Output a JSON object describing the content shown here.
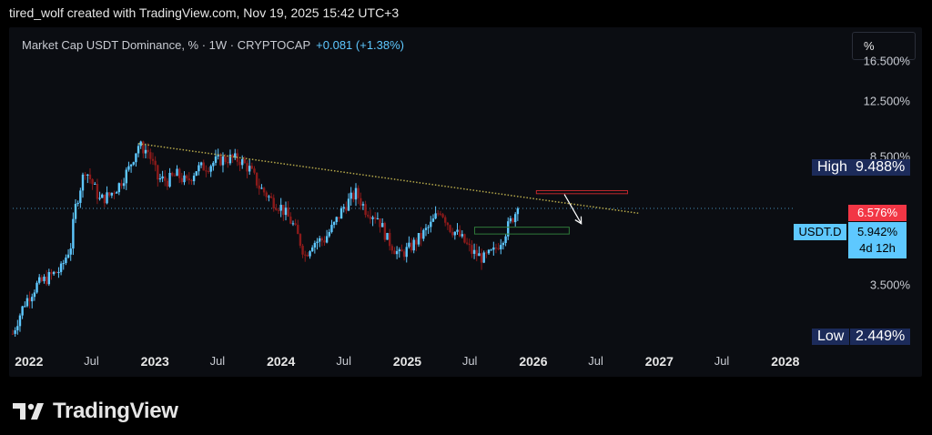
{
  "header": {
    "caption": "tired_wolf created with TradingView.com, Nov 19, 2025 15:42 UTC+3"
  },
  "legend": {
    "symbol_text": "Market Cap USDT Dominance, % · 1W · CRYPTOCAP",
    "change_text": "+0.081 (+1.38%)"
  },
  "controls": {
    "unit_button_label": "%"
  },
  "tags": {
    "high_label": "High",
    "high_value": "9.488%",
    "low_label": "Low",
    "low_value": "2.449%",
    "red_price": "6.576%",
    "symbol_label": "USDT.D",
    "last_price": "5.942%",
    "countdown": "4d 12h"
  },
  "footer": {
    "brand": "TradingView"
  },
  "colors": {
    "up": "#5ec8ff",
    "down": "#8b1a1a",
    "trendline": "#b5a84a",
    "red_zone": "#c0282d",
    "green_zone": "#2f7a3a",
    "arrow": "#ffffff"
  },
  "chart_data": {
    "type": "candlestick",
    "symbol": "USDT.D",
    "interval": "1W",
    "y_scale": "log",
    "ylim": [
      2.3,
      20
    ],
    "xlim": [
      "2021-11-15",
      "2028-05-15"
    ],
    "y_ticks": [
      {
        "label": "16.500%",
        "value": 16.5
      },
      {
        "label": "12.500%",
        "value": 12.5
      },
      {
        "label": "8.500%",
        "value": 8.5
      },
      {
        "label": "3.500%",
        "value": 3.5
      }
    ],
    "x_ticks": [
      {
        "label": "2022",
        "date": "2022-01-01",
        "year": true
      },
      {
        "label": "Jul",
        "date": "2022-07-01",
        "year": false
      },
      {
        "label": "2023",
        "date": "2023-01-01",
        "year": true
      },
      {
        "label": "Jul",
        "date": "2023-07-01",
        "year": false
      },
      {
        "label": "2024",
        "date": "2024-01-01",
        "year": true
      },
      {
        "label": "Jul",
        "date": "2024-07-01",
        "year": false
      },
      {
        "label": "2025",
        "date": "2025-01-01",
        "year": true
      },
      {
        "label": "Jul",
        "date": "2025-07-01",
        "year": false
      },
      {
        "label": "2026",
        "date": "2026-01-01",
        "year": true
      },
      {
        "label": "Jul",
        "date": "2026-07-01",
        "year": false
      },
      {
        "label": "2027",
        "date": "2027-01-01",
        "year": true
      },
      {
        "label": "Jul",
        "date": "2027-07-01",
        "year": false
      },
      {
        "label": "2028",
        "date": "2028-01-01",
        "year": true
      }
    ],
    "high": 9.488,
    "low": 2.449,
    "last": 5.942,
    "close_points": [
      [
        "2021-11-15",
        2.5
      ],
      [
        "2021-12-20",
        3.1
      ],
      [
        "2022-01-24",
        3.5
      ],
      [
        "2022-02-28",
        3.7
      ],
      [
        "2022-04-04",
        3.9
      ],
      [
        "2022-05-02",
        4.6
      ],
      [
        "2022-05-16",
        6.0
      ],
      [
        "2022-06-13",
        7.8
      ],
      [
        "2022-06-27",
        7.3
      ],
      [
        "2022-07-25",
        6.3
      ],
      [
        "2022-08-22",
        6.5
      ],
      [
        "2022-09-19",
        7.0
      ],
      [
        "2022-10-17",
        7.8
      ],
      [
        "2022-11-14",
        9.2
      ],
      [
        "2022-12-12",
        8.8
      ],
      [
        "2023-01-09",
        7.3
      ],
      [
        "2023-02-06",
        7.2
      ],
      [
        "2023-03-06",
        7.5
      ],
      [
        "2023-04-03",
        7.1
      ],
      [
        "2023-05-01",
        7.8
      ],
      [
        "2023-06-05",
        8.0
      ],
      [
        "2023-07-03",
        8.3
      ],
      [
        "2023-08-07",
        8.4
      ],
      [
        "2023-09-04",
        8.3
      ],
      [
        "2023-10-02",
        7.8
      ],
      [
        "2023-10-30",
        6.9
      ],
      [
        "2023-12-04",
        6.3
      ],
      [
        "2024-01-01",
        6.0
      ],
      [
        "2024-02-05",
        5.3
      ],
      [
        "2024-03-11",
        4.3
      ],
      [
        "2024-04-01",
        4.7
      ],
      [
        "2024-05-06",
        4.8
      ],
      [
        "2024-06-03",
        5.3
      ],
      [
        "2024-07-01",
        6.0
      ],
      [
        "2024-08-05",
        6.6
      ],
      [
        "2024-09-02",
        5.9
      ],
      [
        "2024-10-07",
        5.6
      ],
      [
        "2024-11-04",
        4.8
      ],
      [
        "2024-12-09",
        4.3
      ],
      [
        "2025-01-06",
        4.5
      ],
      [
        "2025-02-10",
        4.9
      ],
      [
        "2025-03-10",
        5.3
      ],
      [
        "2025-04-07",
        5.9
      ],
      [
        "2025-05-05",
        5.2
      ],
      [
        "2025-06-02",
        4.9
      ],
      [
        "2025-07-07",
        4.4
      ],
      [
        "2025-08-11",
        4.2
      ],
      [
        "2025-09-08",
        4.4
      ],
      [
        "2025-10-06",
        4.9
      ],
      [
        "2025-11-17",
        5.942
      ]
    ],
    "annotations": [
      {
        "kind": "trendline",
        "from": [
          "2022-11-14",
          9.3
        ],
        "to": [
          "2026-11-01",
          5.75
        ]
      },
      {
        "kind": "zone",
        "color": "red",
        "from": [
          "2026-01-10",
          6.72
        ],
        "to": [
          "2026-10-01",
          6.58
        ]
      },
      {
        "kind": "zone",
        "color": "green",
        "from": [
          "2025-07-15",
          5.22
        ],
        "to": [
          "2026-04-15",
          4.98
        ]
      },
      {
        "kind": "arrow",
        "from": [
          "2026-04-01",
          6.55
        ],
        "to": [
          "2026-05-20",
          5.35
        ]
      }
    ]
  }
}
